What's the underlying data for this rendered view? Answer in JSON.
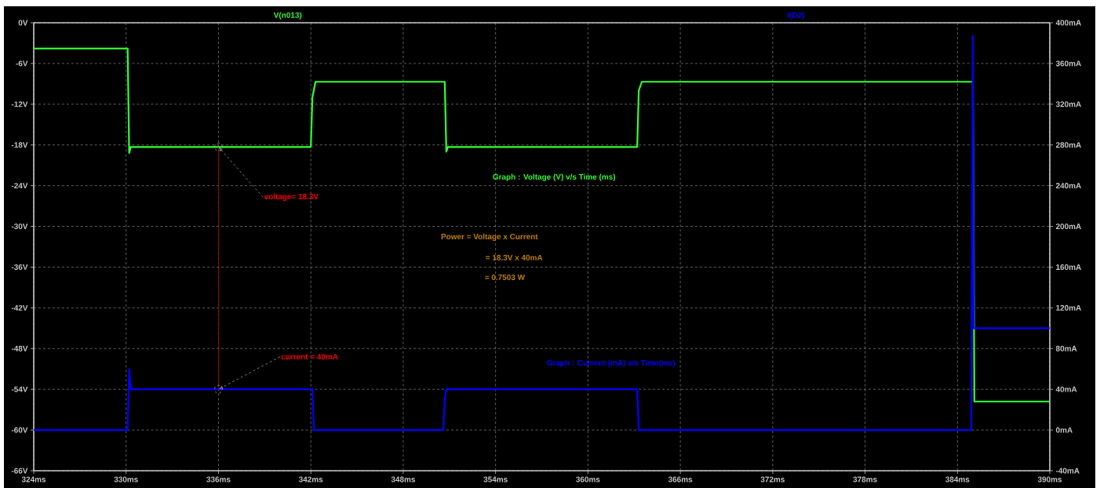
{
  "chart_data": {
    "type": "line",
    "xlim": [
      324,
      390
    ],
    "ylim": [
      -66,
      0
    ],
    "y2lim": [
      -40,
      400
    ],
    "xticks": [
      {
        "value": 324,
        "label": "324ms"
      },
      {
        "value": 330,
        "label": "330ms"
      },
      {
        "value": 336,
        "label": "336ms"
      },
      {
        "value": 342,
        "label": "342ms"
      },
      {
        "value": 348,
        "label": "348ms"
      },
      {
        "value": 354,
        "label": "354ms"
      },
      {
        "value": 360,
        "label": "360ms"
      },
      {
        "value": 366,
        "label": "366ms"
      },
      {
        "value": 372,
        "label": "372ms"
      },
      {
        "value": 378,
        "label": "378ms"
      },
      {
        "value": 384,
        "label": "384ms"
      },
      {
        "value": 390,
        "label": "390ms"
      }
    ],
    "yticks": [
      {
        "value": 0,
        "label": "0V"
      },
      {
        "value": -6,
        "label": "-6V"
      },
      {
        "value": -12,
        "label": "-12V"
      },
      {
        "value": -18,
        "label": "-18V"
      },
      {
        "value": -24,
        "label": "-24V"
      },
      {
        "value": -30,
        "label": "-30V"
      },
      {
        "value": -36,
        "label": "-36V"
      },
      {
        "value": -42,
        "label": "-42V"
      },
      {
        "value": -48,
        "label": "-48V"
      },
      {
        "value": -54,
        "label": "-54V"
      },
      {
        "value": -60,
        "label": "-60V"
      },
      {
        "value": -66,
        "label": "-66V"
      }
    ],
    "y2ticks": [
      {
        "value": 400,
        "label": "400mA"
      },
      {
        "value": 360,
        "label": "360mA"
      },
      {
        "value": 320,
        "label": "320mA"
      },
      {
        "value": 280,
        "label": "280mA"
      },
      {
        "value": 240,
        "label": "240mA"
      },
      {
        "value": 200,
        "label": "200mA"
      },
      {
        "value": 160,
        "label": "160mA"
      },
      {
        "value": 120,
        "label": "120mA"
      },
      {
        "value": 80,
        "label": "80mA"
      },
      {
        "value": 40,
        "label": "40mA"
      },
      {
        "value": 0,
        "label": "0mA"
      },
      {
        "value": -40,
        "label": "-40mA"
      }
    ],
    "grid": true,
    "legend": "top",
    "marker": "none",
    "line_style": "solid",
    "series": [
      {
        "name": "V(n013)",
        "color": "#33ff33",
        "x": [
          324,
          330.1,
          330.2,
          330.3,
          342.0,
          342.1,
          342.3,
          350.7,
          350.8,
          350.9,
          363.2,
          363.3,
          363.5,
          385.0,
          385.1,
          390
        ],
        "values": [
          -3.8,
          -3.8,
          -19.2,
          -18.3,
          -18.3,
          -11,
          -8.7,
          -8.7,
          -19,
          -18.3,
          -18.3,
          -10,
          -8.7,
          -8.7,
          -55.8,
          -55.8
        ]
      },
      {
        "name": "I(D2)",
        "color": "#0000ff",
        "axis": "y2",
        "x": [
          324,
          330.1,
          330.2,
          330.3,
          342.1,
          342.2,
          350.6,
          350.7,
          350.8,
          363.2,
          363.3,
          384.9,
          385.0,
          385.05,
          390
        ],
        "values": [
          0,
          0,
          60,
          40,
          40,
          0,
          0,
          30,
          40,
          40,
          0,
          0,
          387,
          100,
          100
        ]
      }
    ],
    "annotations": [
      {
        "text": "voltage= 18.3V",
        "x": 336,
        "y": -18.3
      },
      {
        "text": "current = 40mA",
        "x": 336,
        "y": -54
      },
      "Graph : Voltage (V) v/s Time (ms)",
      "Power = Voltage x Current",
      "= 18.3V x 40mA",
      "= 0.7503 W",
      "Graph : Current (mA) v/s Time(ms)"
    ]
  }
}
